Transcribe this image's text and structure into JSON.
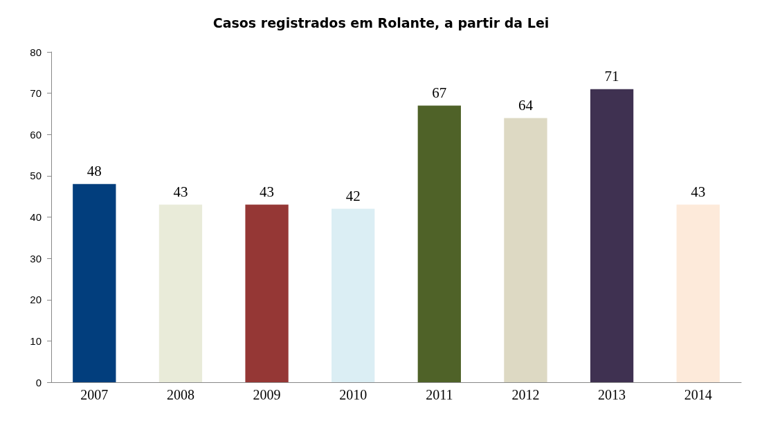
{
  "chart_data": {
    "type": "bar",
    "title": "Casos registrados em Rolante, a partir da Lei",
    "categories": [
      "2007",
      "2008",
      "2009",
      "2010",
      "2011",
      "2012",
      "2013",
      "2014"
    ],
    "values": [
      48,
      43,
      43,
      42,
      67,
      64,
      71,
      43
    ],
    "colors": [
      "#023e7d",
      "#e9ebd9",
      "#953735",
      "#dbeef4",
      "#4f6228",
      "#ddd9c3",
      "#3f3151",
      "#fdeada"
    ],
    "ylim": [
      0,
      80
    ],
    "yticks": [
      0,
      10,
      20,
      30,
      40,
      50,
      60,
      70,
      80
    ],
    "grid": false,
    "data_labels": true
  }
}
